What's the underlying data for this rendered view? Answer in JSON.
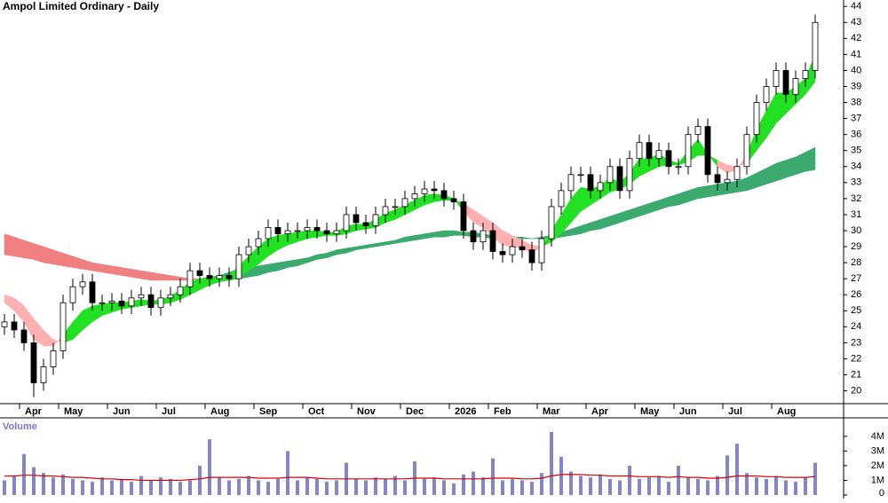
{
  "chart_data": [
    {
      "type": "candlestick",
      "title": "Ampol Limited Ordinary - Daily",
      "categories": [
        null,
        null,
        "Apr",
        null,
        null,
        null,
        "May",
        null,
        null,
        null,
        null,
        "Jun",
        null,
        null,
        null,
        null,
        "Jul",
        null,
        null,
        null,
        null,
        "Aug",
        null,
        null,
        null,
        null,
        "Sep",
        null,
        null,
        null,
        null,
        "Oct",
        null,
        null,
        null,
        null,
        "Nov",
        null,
        null,
        null,
        null,
        "Dec",
        null,
        null,
        null,
        null,
        "2026",
        null,
        null,
        null,
        "Feb",
        null,
        null,
        null,
        null,
        "Mar",
        null,
        null,
        null,
        null,
        "Apr",
        null,
        null,
        null,
        null,
        "May",
        null,
        null,
        null,
        "Jun",
        null,
        null,
        null,
        null,
        "Jul",
        null,
        null,
        null,
        null,
        "Aug",
        null,
        null,
        null,
        null
      ],
      "open": [
        24.0,
        24.3,
        23.8,
        23.0,
        20.5,
        21.5,
        22.5,
        25.5,
        26.5,
        26.8,
        25.5,
        25.5,
        25.6,
        25.3,
        25.8,
        26.0,
        25.2,
        25.8,
        26.0,
        26.5,
        27.5,
        27.2,
        27.0,
        27.2,
        27.0,
        28.5,
        29.0,
        29.5,
        30.2,
        29.8,
        30.0,
        30.0,
        30.2,
        30.0,
        29.8,
        30.0,
        31.0,
        30.5,
        30.3,
        31.0,
        31.5,
        31.5,
        32.0,
        32.3,
        32.6,
        32.5,
        32.0,
        31.8,
        30.0,
        29.3,
        30.0,
        28.7,
        28.5,
        29.0,
        28.8,
        28.0,
        29.5,
        31.5,
        32.5,
        33.5,
        33.5,
        32.5,
        33.0,
        34.0,
        32.5,
        34.5,
        35.5,
        34.5,
        35.0,
        34.0,
        34.0,
        36.0,
        36.5,
        33.5,
        33.0,
        33.2,
        34.0,
        36.0,
        38.0,
        39.0,
        40.0,
        38.5,
        39.5,
        40.0
      ],
      "high": [
        24.8,
        24.8,
        24.3,
        23.5,
        22.0,
        23.0,
        26.0,
        27.0,
        27.3,
        27.3,
        26.0,
        26.1,
        26.1,
        26.3,
        26.5,
        26.5,
        26.3,
        26.5,
        27.0,
        28.0,
        28.0,
        27.7,
        27.7,
        27.7,
        29.0,
        29.5,
        30.0,
        30.7,
        30.7,
        30.5,
        30.5,
        30.7,
        30.7,
        30.5,
        30.5,
        31.5,
        31.5,
        31.0,
        31.5,
        32.0,
        32.0,
        32.5,
        32.8,
        33.1,
        33.1,
        33.0,
        32.5,
        32.3,
        30.5,
        30.5,
        30.5,
        29.2,
        29.5,
        29.5,
        29.3,
        30.0,
        32.0,
        33.0,
        34.0,
        34.0,
        34.0,
        33.5,
        34.5,
        34.5,
        35.0,
        36.0,
        36.0,
        35.5,
        35.5,
        34.5,
        36.5,
        37.0,
        37.0,
        34.0,
        33.7,
        34.5,
        36.5,
        38.5,
        39.5,
        40.5,
        40.5,
        40.0,
        40.5,
        43.5
      ],
      "low": [
        23.5,
        23.3,
        22.5,
        19.6,
        20.0,
        21.0,
        22.0,
        25.0,
        26.0,
        25.0,
        25.0,
        25.0,
        24.8,
        24.8,
        25.3,
        24.7,
        24.7,
        25.3,
        25.5,
        26.0,
        26.7,
        26.5,
        26.5,
        26.5,
        26.5,
        28.0,
        28.5,
        29.0,
        29.3,
        29.3,
        29.5,
        29.5,
        29.5,
        29.3,
        29.3,
        29.5,
        30.0,
        29.8,
        29.8,
        30.5,
        31.0,
        31.0,
        31.5,
        31.8,
        32.0,
        31.5,
        31.3,
        29.5,
        28.8,
        28.8,
        28.2,
        28.0,
        28.0,
        28.3,
        27.5,
        27.5,
        29.0,
        31.0,
        32.0,
        33.0,
        32.0,
        32.0,
        32.5,
        32.0,
        32.0,
        34.0,
        34.0,
        34.0,
        33.5,
        33.5,
        33.5,
        35.5,
        33.0,
        32.5,
        32.5,
        32.7,
        33.5,
        35.5,
        37.5,
        38.5,
        38.0,
        38.0,
        39.0,
        39.5
      ],
      "close": [
        24.3,
        23.8,
        23.0,
        20.5,
        21.5,
        22.5,
        25.5,
        26.5,
        26.8,
        25.5,
        25.5,
        25.6,
        25.3,
        25.8,
        26.0,
        25.2,
        25.8,
        26.0,
        26.5,
        27.5,
        27.2,
        27.0,
        27.2,
        27.0,
        28.5,
        29.0,
        29.5,
        30.2,
        29.8,
        30.0,
        30.0,
        30.2,
        30.0,
        29.8,
        30.0,
        31.0,
        30.5,
        30.3,
        31.0,
        31.5,
        31.5,
        32.0,
        32.3,
        32.6,
        32.5,
        32.0,
        31.8,
        30.0,
        29.3,
        30.0,
        28.7,
        28.5,
        29.0,
        28.8,
        28.0,
        29.5,
        31.5,
        32.5,
        33.5,
        33.5,
        32.5,
        33.0,
        34.0,
        32.5,
        34.5,
        35.5,
        34.5,
        35.0,
        34.0,
        34.0,
        36.0,
        36.5,
        33.5,
        33.0,
        33.2,
        34.0,
        36.0,
        38.0,
        39.0,
        40.0,
        38.5,
        39.5,
        40.0,
        43.0
      ],
      "long_ribbon": {
        "color_up": "#3aaa6e",
        "color_down": "#f08080",
        "fast": [
          28.5,
          28.4,
          28.3,
          28.2,
          28.0,
          27.9,
          27.8,
          27.7,
          27.6,
          27.5,
          27.4,
          27.3,
          27.2,
          27.1,
          27.0,
          26.9,
          26.9,
          26.9,
          26.9,
          26.9,
          27.0,
          27.1,
          27.2,
          27.4,
          27.6,
          27.7,
          27.8,
          27.9,
          28.0,
          28.1,
          28.2,
          28.3,
          28.5,
          28.6,
          28.8,
          28.9,
          29.0,
          29.1,
          29.2,
          29.3,
          29.4,
          29.6,
          29.7,
          29.8,
          29.9,
          30.0,
          30.0,
          29.9,
          29.9,
          29.8,
          29.7,
          29.7,
          29.6,
          29.6,
          29.5,
          29.6,
          29.7,
          29.9,
          30.1,
          30.3,
          30.5,
          30.7,
          30.9,
          31.1,
          31.3,
          31.5,
          31.7,
          31.9,
          32.1,
          32.3,
          32.5,
          32.7,
          32.8,
          32.9,
          33.0,
          33.1,
          33.3,
          33.6,
          33.9,
          34.2,
          34.4,
          34.6,
          34.9,
          35.2
        ],
        "slow": [
          29.8,
          29.6,
          29.4,
          29.2,
          29.0,
          28.8,
          28.6,
          28.4,
          28.2,
          28.0,
          27.9,
          27.8,
          27.7,
          27.6,
          27.5,
          27.4,
          27.3,
          27.2,
          27.1,
          27.0,
          27.0,
          27.0,
          26.9,
          26.9,
          27.0,
          27.1,
          27.2,
          27.4,
          27.5,
          27.7,
          27.8,
          28.0,
          28.2,
          28.3,
          28.5,
          28.6,
          28.8,
          28.9,
          29.0,
          29.1,
          29.2,
          29.3,
          29.4,
          29.5,
          29.6,
          29.6,
          29.7,
          29.7,
          29.6,
          29.6,
          29.5,
          29.5,
          29.5,
          29.5,
          29.5,
          29.5,
          29.5,
          29.6,
          29.7,
          29.8,
          30.0,
          30.1,
          30.3,
          30.5,
          30.7,
          30.9,
          31.1,
          31.3,
          31.5,
          31.6,
          31.8,
          32.0,
          32.1,
          32.2,
          32.3,
          32.4,
          32.5,
          32.7,
          32.9,
          33.1,
          33.3,
          33.5,
          33.7,
          33.8
        ]
      },
      "short_ribbon": {
        "color_up": "#22e022",
        "color_down": "#ffb0b0",
        "fast": [
          25.5,
          25.0,
          24.3,
          23.2,
          22.8,
          22.8,
          23.5,
          24.3,
          25.0,
          25.3,
          25.4,
          25.5,
          25.5,
          25.6,
          25.7,
          25.6,
          25.7,
          25.9,
          26.3,
          26.8,
          27.0,
          27.1,
          27.1,
          27.2,
          27.8,
          28.4,
          29.0,
          29.5,
          29.7,
          29.8,
          29.9,
          30.0,
          30.0,
          29.9,
          29.9,
          30.3,
          30.4,
          30.4,
          30.7,
          31.1,
          31.3,
          31.6,
          31.9,
          32.2,
          32.3,
          32.2,
          32.0,
          31.2,
          30.5,
          30.2,
          29.6,
          29.1,
          29.0,
          28.9,
          28.6,
          29.0,
          30.0,
          31.0,
          32.0,
          32.7,
          32.6,
          32.8,
          33.3,
          33.0,
          33.6,
          34.5,
          34.5,
          34.8,
          34.4,
          34.2,
          35.0,
          35.7,
          34.8,
          34.0,
          33.6,
          33.8,
          34.8,
          36.3,
          37.5,
          38.6,
          38.6,
          39.0,
          39.5,
          41.0
        ],
        "slow": [
          26.0,
          25.8,
          25.3,
          24.5,
          23.8,
          23.2,
          23.0,
          23.2,
          23.8,
          24.3,
          24.7,
          24.9,
          25.1,
          25.2,
          25.3,
          25.4,
          25.4,
          25.5,
          25.7,
          26.0,
          26.3,
          26.6,
          26.8,
          26.9,
          27.1,
          27.5,
          27.9,
          28.4,
          28.8,
          29.1,
          29.3,
          29.5,
          29.6,
          29.7,
          29.7,
          29.8,
          30.0,
          30.1,
          30.2,
          30.5,
          30.7,
          31.0,
          31.3,
          31.6,
          31.8,
          31.9,
          31.9,
          31.7,
          31.3,
          30.9,
          30.5,
          30.0,
          29.7,
          29.4,
          29.1,
          29.0,
          29.3,
          29.8,
          30.5,
          31.2,
          31.6,
          32.0,
          32.4,
          32.6,
          32.9,
          33.4,
          33.7,
          34.0,
          34.1,
          34.1,
          34.3,
          34.7,
          34.7,
          34.4,
          34.1,
          34.0,
          34.2,
          35.0,
          35.8,
          36.7,
          37.3,
          37.9,
          38.5,
          39.3
        ]
      },
      "up_color": "#ffffff",
      "down_color": "#000000",
      "ylim": [
        19.2,
        44.4
      ],
      "yticks": [
        20,
        21,
        22,
        23,
        24,
        25,
        26,
        27,
        28,
        29,
        30,
        31,
        32,
        33,
        34,
        35,
        36,
        37,
        38,
        39,
        40,
        41,
        42,
        43,
        44
      ]
    },
    {
      "type": "bar",
      "title": "Volume",
      "color": "#8585cc",
      "values": [
        1000000,
        1300000,
        2800000,
        1900000,
        1500000,
        1200000,
        1400000,
        1100000,
        1000000,
        900000,
        1200000,
        1000000,
        1100000,
        900000,
        1300000,
        1000000,
        1200000,
        1100000,
        900000,
        1000000,
        2000000,
        3800000,
        1200000,
        1000000,
        1100000,
        1300000,
        1000000,
        900000,
        1100000,
        3000000,
        1000000,
        1200000,
        1100000,
        900000,
        1000000,
        2200000,
        1100000,
        1000000,
        1200000,
        1100000,
        1300000,
        1000000,
        2300000,
        1100000,
        1200000,
        1000000,
        800000,
        1400000,
        1600000,
        1200000,
        2500000,
        1000000,
        1100000,
        1000000,
        900000,
        1500000,
        4300000,
        2600000,
        1600000,
        1300000,
        1200000,
        1400000,
        1100000,
        1000000,
        2000000,
        1100000,
        1200000,
        1300000,
        900000,
        2000000,
        1200000,
        1100000,
        1000000,
        1300000,
        2700000,
        3500000,
        1500000,
        1200000,
        1100000,
        1300000,
        1000000,
        900000,
        1200000,
        2200000
      ],
      "average": {
        "color": "#dd0000",
        "values": [
          1300000,
          1300000,
          1350000,
          1350000,
          1300000,
          1300000,
          1250000,
          1200000,
          1200000,
          1150000,
          1100000,
          1100000,
          1050000,
          1050000,
          1000000,
          1000000,
          1000000,
          1000000,
          1000000,
          1050000,
          1100000,
          1200000,
          1200000,
          1200000,
          1200000,
          1200000,
          1150000,
          1150000,
          1150000,
          1200000,
          1200000,
          1200000,
          1150000,
          1100000,
          1100000,
          1100000,
          1100000,
          1100000,
          1100000,
          1100000,
          1100000,
          1100000,
          1150000,
          1150000,
          1150000,
          1100000,
          1100000,
          1100000,
          1100000,
          1100000,
          1150000,
          1150000,
          1150000,
          1100000,
          1100000,
          1150000,
          1300000,
          1400000,
          1400000,
          1400000,
          1350000,
          1350000,
          1300000,
          1300000,
          1300000,
          1250000,
          1250000,
          1250000,
          1200000,
          1250000,
          1200000,
          1200000,
          1150000,
          1150000,
          1200000,
          1300000,
          1300000,
          1300000,
          1250000,
          1250000,
          1200000,
          1200000,
          1200000,
          1250000
        ]
      },
      "ylim": [
        0,
        5200000
      ],
      "yticks": [
        {
          "value": 0,
          "label": "0"
        },
        {
          "value": 1000000,
          "label": "1M"
        },
        {
          "value": 2000000,
          "label": "2M"
        },
        {
          "value": 3000000,
          "label": "3M"
        },
        {
          "value": 4000000,
          "label": "4M"
        }
      ]
    }
  ]
}
